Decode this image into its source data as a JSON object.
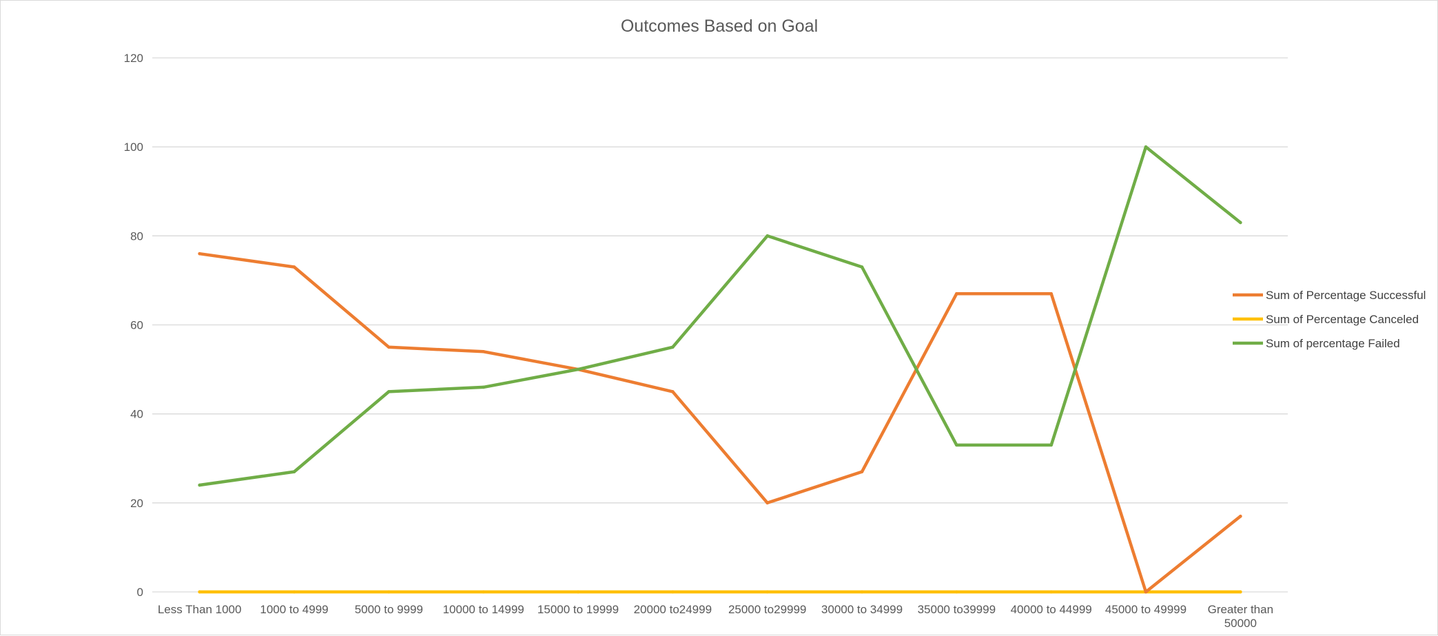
{
  "chart_data": {
    "type": "line",
    "title": "Outcomes Based on Goal",
    "xlabel": "",
    "ylabel": "",
    "categories": [
      [
        "Less Than 1000"
      ],
      [
        "1000 to 4999"
      ],
      [
        "5000 to 9999"
      ],
      [
        "10000 to 14999"
      ],
      [
        "15000 to 19999"
      ],
      [
        "20000 to24999"
      ],
      [
        "25000 to29999"
      ],
      [
        "30000 to 34999"
      ],
      [
        "35000 to39999"
      ],
      [
        "40000 to 44999"
      ],
      [
        "45000 to 49999"
      ],
      [
        "Greater than",
        "50000"
      ]
    ],
    "ylim": [
      0,
      120
    ],
    "yticks": [
      0,
      20,
      40,
      60,
      80,
      100,
      120
    ],
    "grid": true,
    "legend_position": "right",
    "series": [
      {
        "name": "Sum of Percentage Successful",
        "color": "#ED7D31",
        "values": [
          76,
          73,
          55,
          54,
          50,
          45,
          20,
          27,
          67,
          67,
          0,
          17
        ]
      },
      {
        "name": "Sum of Percentage Canceled",
        "color": "#FFC000",
        "values": [
          0,
          0,
          0,
          0,
          0,
          0,
          0,
          0,
          0,
          0,
          0,
          0
        ]
      },
      {
        "name": "Sum of percentage Failed",
        "color": "#70AD47",
        "values": [
          24,
          27,
          45,
          46,
          50,
          55,
          80,
          73,
          33,
          33,
          100,
          83
        ]
      }
    ]
  }
}
